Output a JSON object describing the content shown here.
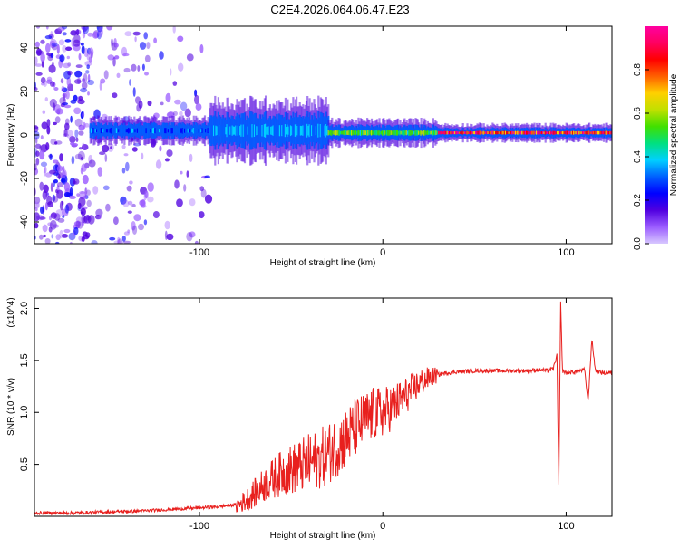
{
  "figure": {
    "title": "C2E4.2026.064.06.47.E23"
  },
  "chart_data": [
    {
      "type": "heatmap",
      "title": "C2E4.2026.064.06.47.E23",
      "xlabel": "Height of straight line (km)",
      "ylabel": "Frequency (Hz)",
      "xlim": [
        -190,
        125
      ],
      "ylim": [
        -50,
        50
      ],
      "x_ticks": [
        -100,
        0,
        100
      ],
      "y_ticks": [
        -40,
        -20,
        0,
        20,
        40
      ],
      "colorbar": {
        "label": "Normalized spectral amplitude",
        "range": [
          0,
          1
        ],
        "ticks": [
          0.0,
          0.2,
          0.4,
          0.6,
          0.8
        ],
        "colors": [
          "#d8c8ff",
          "#9b5cff",
          "#5000e0",
          "#0000ff",
          "#0060ff",
          "#00d0ff",
          "#00e080",
          "#40e000",
          "#c0e000",
          "#ffd000",
          "#ff6000",
          "#ff0000",
          "#ff0060",
          "#ff00a0"
        ]
      },
      "grid": false,
      "band_center_freq_hz": 1,
      "band_segments": [
        {
          "x_from": -160,
          "x_to": -95,
          "center_hz": 2,
          "half_width_hz": 3,
          "peak_amplitude": 0.35
        },
        {
          "x_from": -95,
          "x_to": -30,
          "center_hz": 2,
          "half_width_hz": 7,
          "peak_amplitude": 0.4
        },
        {
          "x_from": -30,
          "x_to": 30,
          "center_hz": 1,
          "half_width_hz": 3,
          "peak_amplitude": 0.6
        },
        {
          "x_from": 30,
          "x_to": 125,
          "center_hz": 1,
          "half_width_hz": 2,
          "peak_amplitude": 0.95
        }
      ],
      "noise_region": {
        "x_from": -190,
        "x_to": -95,
        "amplitude": 0.15
      }
    },
    {
      "type": "line",
      "xlabel": "Height of straight line (km)",
      "ylabel": "SNR (10 * v/v)",
      "y_multiplier_label": "(x10^4)",
      "xlim": [
        -190,
        125
      ],
      "ylim": [
        0,
        2.1
      ],
      "x_ticks": [
        -100,
        0,
        100
      ],
      "y_ticks": [
        0.5,
        1.0,
        1.5,
        2.0
      ],
      "y_tick_labels": [
        "0.5",
        "1.0",
        "1.5",
        "2.0"
      ],
      "line_color": "#e8201e",
      "grid": false,
      "series": [
        {
          "x": [
            -190,
            -170,
            -150,
            -130,
            -110,
            -100,
            -90,
            -80,
            -75,
            -70,
            -65,
            -60,
            -55,
            -50,
            -45,
            -40,
            -35,
            -30,
            -25,
            -20,
            -15,
            -10,
            -5,
            0,
            5,
            10,
            15,
            20,
            25,
            30,
            35,
            40,
            50,
            60,
            70,
            80,
            85,
            90,
            93,
            95,
            96,
            97,
            98,
            100,
            105,
            110,
            112,
            114,
            116,
            120,
            125
          ],
          "y": [
            0.02,
            0.02,
            0.03,
            0.04,
            0.06,
            0.07,
            0.08,
            0.1,
            0.15,
            0.22,
            0.3,
            0.36,
            0.42,
            0.45,
            0.48,
            0.52,
            0.55,
            0.6,
            0.68,
            0.75,
            0.85,
            0.92,
            0.98,
            1.0,
            1.05,
            1.12,
            1.2,
            1.28,
            1.33,
            1.36,
            1.38,
            1.39,
            1.4,
            1.4,
            1.4,
            1.4,
            1.41,
            1.4,
            1.42,
            1.55,
            0.3,
            2.05,
            1.4,
            1.38,
            1.39,
            1.41,
            1.1,
            1.7,
            1.4,
            1.38,
            1.38
          ]
        }
      ]
    }
  ]
}
